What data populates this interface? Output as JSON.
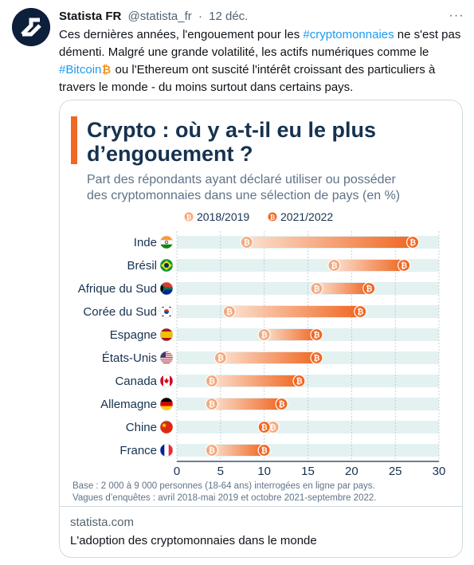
{
  "tweet": {
    "author_name": "Statista FR",
    "handle": "@statista_fr",
    "separator": "·",
    "date": "12 déc.",
    "more_label": "···",
    "text": {
      "p1": "Ces dernières années, l'engouement pour les ",
      "hashtag1": "#cryptomonnaies",
      "p2": " ne s'est pas démenti. Malgré une grande volatilité, les actifs numériques comme le ",
      "hashtag2": "#Bitcoin",
      "p3": " ou l'Ethereum ont suscité l'intérêt croissant des particuliers à travers le monde - du moins surtout dans certains pays."
    }
  },
  "card": {
    "domain": "statista.com",
    "link_title": "L'adoption des cryptomonnaies dans le monde"
  },
  "colors": {
    "accent": "#f06823",
    "light_dot": "#f4a97d",
    "band": "#e3f1f1",
    "link": "#1d9bf0",
    "title": "#16324f"
  },
  "chart_data": {
    "type": "dumbbell",
    "title_line1": "Crypto : où y a-t-il eu le plus",
    "title_line2": "d’engouement ?",
    "subtitle_line1": "Part des répondants ayant déclaré utiliser ou posséder",
    "subtitle_line2": "des cryptomonnaies dans une sélection de pays (en %)",
    "legend": [
      "2018/2019",
      "2021/2022"
    ],
    "legend_position": "top",
    "categories": [
      "Inde",
      "Brésil",
      "Afrique du Sud",
      "Corée du Sud",
      "Espagne",
      "États-Unis",
      "Canada",
      "Allemagne",
      "Chine",
      "France"
    ],
    "flag_icons": [
      "india-flag-icon",
      "brazil-flag-icon",
      "south-africa-flag-icon",
      "south-korea-flag-icon",
      "spain-flag-icon",
      "usa-flag-icon",
      "canada-flag-icon",
      "germany-flag-icon",
      "china-flag-icon",
      "france-flag-icon"
    ],
    "series": [
      {
        "name": "2018/2019",
        "values": [
          8,
          18,
          16,
          6,
          10,
          5,
          4,
          4,
          11,
          4
        ]
      },
      {
        "name": "2021/2022",
        "values": [
          27,
          26,
          22,
          21,
          16,
          16,
          14,
          12,
          10,
          10
        ]
      }
    ],
    "xlim": [
      0,
      30
    ],
    "xticks": [
      0,
      5,
      10,
      15,
      20,
      25,
      30
    ],
    "grid": "vertical",
    "source_line1": "Base : 2 000 à 9 000 personnes (18-64 ans) interrogées en ligne par pays.",
    "source_line2": "Vagues d’enquêtes : avril 2018-mai 2019 et octobre 2021-septembre 2022."
  }
}
